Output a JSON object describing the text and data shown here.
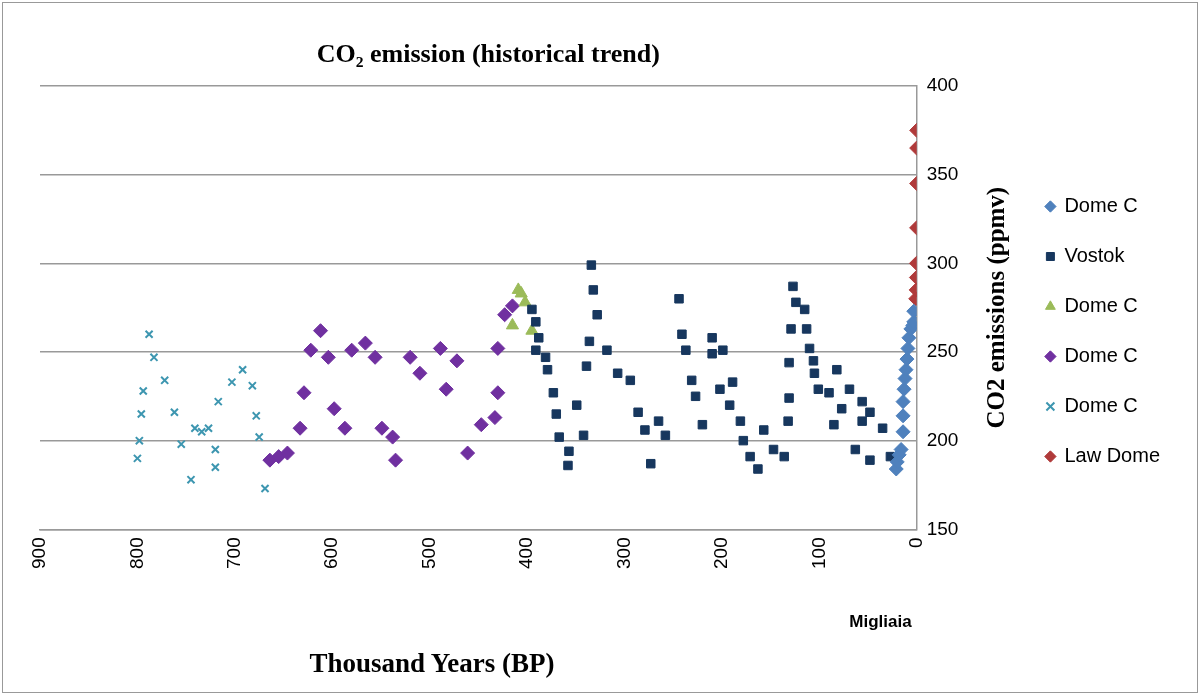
{
  "chart_data": {
    "type": "scatter",
    "title": "CO₂ emission (historical trend)",
    "xlabel": "Thousand Years (BP)",
    "ylabel": "CO2 emissions (ppmv)",
    "annotations": [
      "Migliaia"
    ],
    "xlim": [
      900,
      0
    ],
    "xticks": [
      900,
      800,
      700,
      600,
      500,
      400,
      300,
      200,
      100,
      0
    ],
    "ylim": [
      150,
      400
    ],
    "yticks": [
      150,
      200,
      250,
      300,
      350,
      400
    ],
    "grid": "y",
    "legend": "right",
    "series": [
      {
        "name": "Dome C",
        "color": "#4f81bd",
        "marker": "diamond",
        "x": [
          21,
          20,
          18,
          16,
          14,
          14,
          14,
          13,
          12,
          11,
          10,
          9,
          8,
          6,
          4,
          3,
          3
        ],
        "values": [
          184,
          188,
          192,
          195,
          205,
          214,
          222,
          229,
          235,
          240,
          246,
          252,
          258,
          263,
          265,
          267,
          273
        ]
      },
      {
        "name": "Vostok",
        "color": "#17375e",
        "marker": "square",
        "x": [
          395,
          391,
          388,
          391,
          381,
          379,
          373,
          370,
          367,
          358,
          357,
          349,
          342,
          339,
          336,
          334,
          332,
          328,
          318,
          307,
          294,
          286,
          279,
          273,
          265,
          258,
          244,
          241,
          237,
          231,
          227,
          220,
          210,
          210,
          199,
          202,
          189,
          192,
          181,
          178,
          171,
          163,
          157,
          147,
          136,
          132,
          131,
          131,
          129,
          127,
          124,
          115,
          113,
          110,
          106,
          105,
          101,
          90,
          82,
          77,
          85,
          69,
          56,
          48,
          56,
          35,
          63,
          48,
          27
        ],
        "values": [
          274,
          267,
          258,
          251,
          247,
          240,
          227,
          215,
          202,
          186,
          194,
          220,
          203,
          242,
          256,
          299,
          285,
          271,
          251,
          238,
          234,
          216,
          206,
          187,
          211,
          203,
          280,
          260,
          251,
          234,
          225,
          209,
          258,
          249,
          251,
          229,
          233,
          220,
          211,
          200,
          191,
          184,
          206,
          195,
          191,
          211,
          224,
          244,
          263,
          287,
          278,
          274,
          263,
          252,
          245,
          238,
          229,
          227,
          240,
          218,
          209,
          229,
          222,
          216,
          211,
          207,
          195,
          189,
          191
        ]
      },
      {
        "name": "Dome C",
        "color": "#9bbb59",
        "marker": "triangle",
        "x": [
          415,
          409,
          406,
          402,
          395
        ],
        "values": [
          265,
          285,
          283,
          278,
          262
        ]
      },
      {
        "name": "Dome C",
        "color": "#7030a0",
        "marker": "diamond",
        "x": [
          664,
          655,
          646,
          633,
          629,
          622,
          612,
          604,
          598,
          587,
          580,
          566,
          556,
          549,
          538,
          535,
          520,
          510,
          489,
          483,
          472,
          461,
          447,
          433,
          430,
          430,
          423,
          415
        ],
        "values": [
          189,
          191,
          193,
          207,
          227,
          251,
          262,
          247,
          218,
          207,
          251,
          255,
          247,
          207,
          202,
          189,
          247,
          238,
          252,
          229,
          245,
          193,
          209,
          213,
          227,
          252,
          271,
          276
        ]
      },
      {
        "name": "Dome C",
        "color": "#3d96b0",
        "marker": "cross",
        "x": [
          800,
          798,
          796,
          794,
          788,
          783,
          772,
          762,
          755,
          745,
          741,
          734,
          727,
          720,
          720,
          717,
          703,
          692,
          682,
          678,
          675,
          669
        ],
        "values": [
          190,
          200,
          215,
          228,
          260,
          247,
          234,
          216,
          198,
          178,
          207,
          205,
          207,
          195,
          185,
          222,
          233,
          240,
          231,
          214,
          202,
          173
        ]
      },
      {
        "name": "Law Dome",
        "color": "#b03a3a",
        "marker": "diamond",
        "x": [
          1,
          0.5,
          0.3,
          0.2,
          0.1,
          0.05,
          0.02,
          0
        ],
        "values": [
          280,
          285,
          292,
          300,
          320,
          345,
          365,
          375
        ]
      }
    ]
  }
}
